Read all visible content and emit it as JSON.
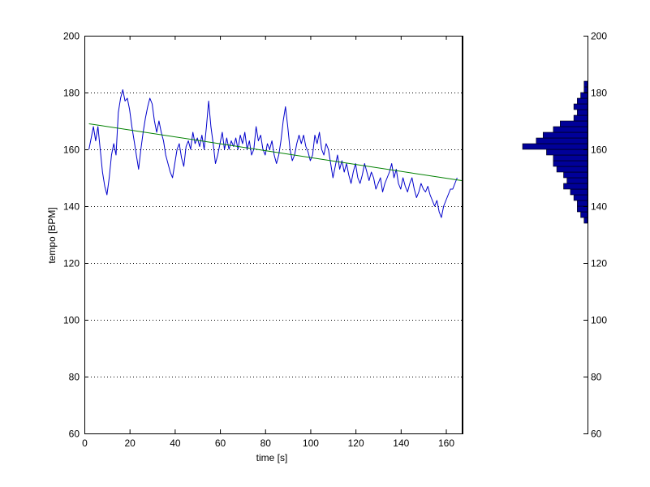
{
  "chart_data": [
    {
      "type": "line",
      "title": "",
      "xlabel": "time [s]",
      "ylabel": "tempo [BPM]",
      "xlim": [
        0,
        167
      ],
      "ylim": [
        60,
        200
      ],
      "x_ticks": [
        "0",
        "20",
        "40",
        "60",
        "80",
        "100",
        "120",
        "140",
        "160"
      ],
      "y_ticks": [
        "60",
        "80",
        "100",
        "120",
        "140",
        "160",
        "180",
        "200"
      ],
      "grid": "horizontal dotted",
      "series": [
        {
          "style": "tempo curve",
          "color": "#0000cc",
          "points": [
            [
              2,
              160
            ],
            [
              3,
              164
            ],
            [
              4,
              168
            ],
            [
              5,
              163
            ],
            [
              6,
              168
            ],
            [
              7,
              160
            ],
            [
              8,
              152
            ],
            [
              9,
              147
            ],
            [
              10,
              144
            ],
            [
              11,
              150
            ],
            [
              12,
              158
            ],
            [
              13,
              162
            ],
            [
              14,
              158
            ],
            [
              15,
              173
            ],
            [
              16,
              178
            ],
            [
              17,
              181
            ],
            [
              18,
              177
            ],
            [
              19,
              178
            ],
            [
              20,
              174
            ],
            [
              21,
              168
            ],
            [
              22,
              163
            ],
            [
              23,
              158
            ],
            [
              24,
              153
            ],
            [
              25,
              160
            ],
            [
              26,
              166
            ],
            [
              27,
              171
            ],
            [
              28,
              175
            ],
            [
              29,
              178
            ],
            [
              30,
              176
            ],
            [
              31,
              170
            ],
            [
              32,
              166
            ],
            [
              33,
              170
            ],
            [
              34,
              166
            ],
            [
              35,
              163
            ],
            [
              36,
              158
            ],
            [
              37,
              155
            ],
            [
              38,
              152
            ],
            [
              39,
              150
            ],
            [
              40,
              155
            ],
            [
              41,
              160
            ],
            [
              42,
              162
            ],
            [
              43,
              157
            ],
            [
              44,
              154
            ],
            [
              45,
              161
            ],
            [
              46,
              163
            ],
            [
              47,
              160
            ],
            [
              48,
              166
            ],
            [
              49,
              162
            ],
            [
              50,
              164
            ],
            [
              51,
              161
            ],
            [
              52,
              165
            ],
            [
              53,
              160
            ],
            [
              54,
              168
            ],
            [
              55,
              177
            ],
            [
              56,
              168
            ],
            [
              57,
              162
            ],
            [
              58,
              155
            ],
            [
              59,
              158
            ],
            [
              60,
              162
            ],
            [
              61,
              166
            ],
            [
              62,
              160
            ],
            [
              63,
              164
            ],
            [
              64,
              160
            ],
            [
              65,
              163
            ],
            [
              66,
              161
            ],
            [
              67,
              164
            ],
            [
              68,
              160
            ],
            [
              69,
              165
            ],
            [
              70,
              162
            ],
            [
              71,
              166
            ],
            [
              72,
              160
            ],
            [
              73,
              163
            ],
            [
              74,
              158
            ],
            [
              75,
              160
            ],
            [
              76,
              168
            ],
            [
              77,
              163
            ],
            [
              78,
              165
            ],
            [
              79,
              160
            ],
            [
              80,
              158
            ],
            [
              81,
              162
            ],
            [
              82,
              160
            ],
            [
              83,
              163
            ],
            [
              84,
              158
            ],
            [
              85,
              155
            ],
            [
              86,
              158
            ],
            [
              87,
              163
            ],
            [
              88,
              170
            ],
            [
              89,
              175
            ],
            [
              90,
              168
            ],
            [
              91,
              160
            ],
            [
              92,
              156
            ],
            [
              93,
              158
            ],
            [
              94,
              162
            ],
            [
              95,
              165
            ],
            [
              96,
              162
            ],
            [
              97,
              165
            ],
            [
              98,
              161
            ],
            [
              99,
              159
            ],
            [
              100,
              156
            ],
            [
              101,
              158
            ],
            [
              102,
              165
            ],
            [
              103,
              162
            ],
            [
              104,
              166
            ],
            [
              105,
              160
            ],
            [
              106,
              158
            ],
            [
              107,
              162
            ],
            [
              108,
              160
            ],
            [
              109,
              155
            ],
            [
              110,
              150
            ],
            [
              111,
              154
            ],
            [
              112,
              158
            ],
            [
              113,
              153
            ],
            [
              114,
              156
            ],
            [
              115,
              152
            ],
            [
              116,
              155
            ],
            [
              117,
              151
            ],
            [
              118,
              148
            ],
            [
              119,
              152
            ],
            [
              120,
              155
            ],
            [
              121,
              150
            ],
            [
              122,
              148
            ],
            [
              123,
              151
            ],
            [
              124,
              155
            ],
            [
              125,
              152
            ],
            [
              126,
              149
            ],
            [
              127,
              152
            ],
            [
              128,
              150
            ],
            [
              129,
              146
            ],
            [
              130,
              148
            ],
            [
              131,
              150
            ],
            [
              132,
              145
            ],
            [
              133,
              148
            ],
            [
              134,
              150
            ],
            [
              135,
              152
            ],
            [
              136,
              155
            ],
            [
              137,
              150
            ],
            [
              138,
              153
            ],
            [
              139,
              148
            ],
            [
              140,
              146
            ],
            [
              141,
              150
            ],
            [
              142,
              147
            ],
            [
              143,
              145
            ],
            [
              144,
              148
            ],
            [
              145,
              150
            ],
            [
              146,
              146
            ],
            [
              147,
              143
            ],
            [
              148,
              145
            ],
            [
              149,
              148
            ],
            [
              150,
              146
            ],
            [
              151,
              145
            ],
            [
              152,
              147
            ],
            [
              153,
              144
            ],
            [
              154,
              142
            ],
            [
              155,
              140
            ],
            [
              156,
              142
            ],
            [
              157,
              138
            ],
            [
              158,
              136
            ],
            [
              159,
              140
            ],
            [
              160,
              142
            ],
            [
              161,
              144
            ],
            [
              162,
              146
            ],
            [
              163,
              146
            ],
            [
              164,
              148
            ],
            [
              165,
              150
            ]
          ]
        },
        {
          "style": "linear trend",
          "color": "#008000",
          "points": [
            [
              2,
              169
            ],
            [
              167,
              149
            ]
          ]
        }
      ]
    },
    {
      "type": "bar",
      "orientation": "horizontal histogram",
      "color": "#000099",
      "ylim": [
        60,
        200
      ],
      "y_ticks": [
        "60",
        "80",
        "100",
        "120",
        "140",
        "160",
        "180",
        "200"
      ],
      "bins": [
        [
          134,
          136,
          1
        ],
        [
          136,
          138,
          2
        ],
        [
          138,
          140,
          3
        ],
        [
          140,
          142,
          3
        ],
        [
          142,
          144,
          4
        ],
        [
          144,
          146,
          5
        ],
        [
          146,
          148,
          7
        ],
        [
          148,
          150,
          6
        ],
        [
          150,
          152,
          7
        ],
        [
          152,
          154,
          9
        ],
        [
          154,
          156,
          10
        ],
        [
          156,
          158,
          10
        ],
        [
          158,
          160,
          12
        ],
        [
          160,
          162,
          19
        ],
        [
          162,
          164,
          15
        ],
        [
          164,
          166,
          13
        ],
        [
          166,
          168,
          10
        ],
        [
          168,
          170,
          8
        ],
        [
          170,
          172,
          4
        ],
        [
          172,
          174,
          3
        ],
        [
          174,
          176,
          4
        ],
        [
          176,
          178,
          3
        ],
        [
          178,
          180,
          2
        ],
        [
          180,
          182,
          1
        ],
        [
          182,
          184,
          1
        ]
      ]
    }
  ]
}
